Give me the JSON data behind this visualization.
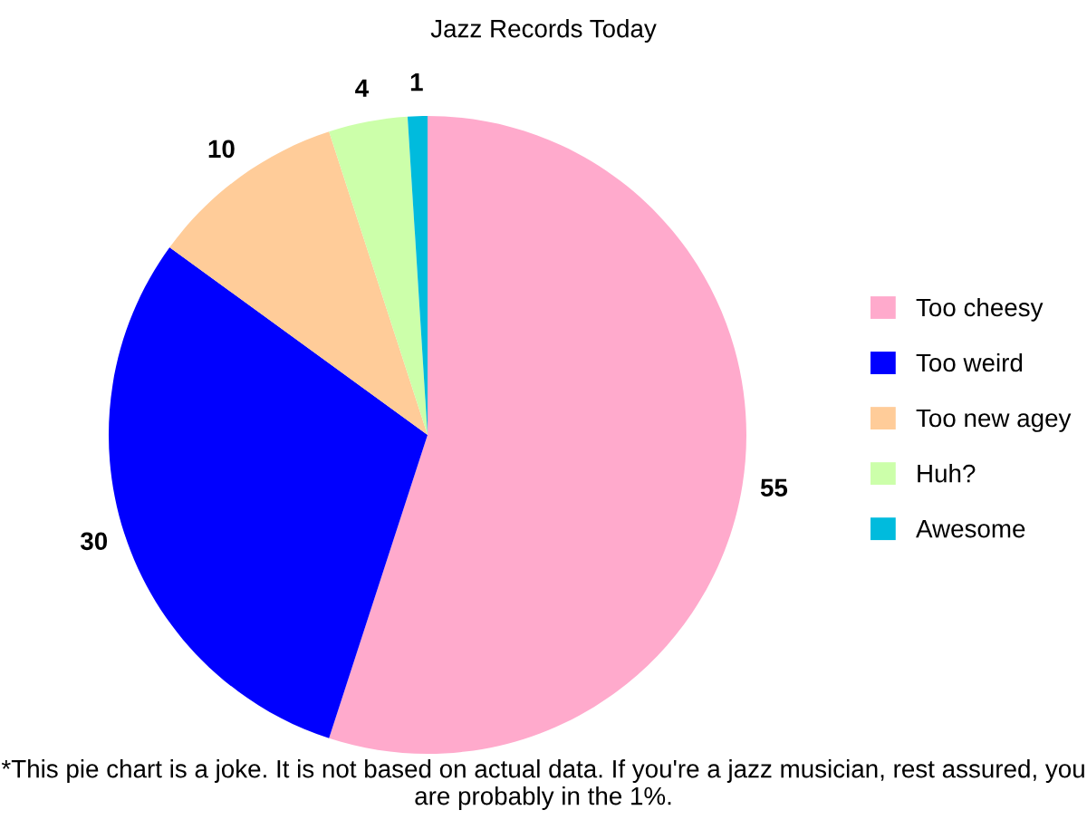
{
  "chart_data": {
    "type": "pie",
    "title": "Jazz Records Today",
    "categories": [
      "Too cheesy",
      "Too weird",
      "Too new agey",
      "Huh?",
      "Awesome"
    ],
    "values": [
      55,
      30,
      10,
      4,
      1
    ],
    "colors": [
      "#ffaacc",
      "#0000ff",
      "#ffcc99",
      "#ccffaa",
      "#00bbdd"
    ],
    "data_labels": true,
    "legend": "right",
    "annotations": [
      "*This pie chart is a joke. It is not based on actual data. If you're a jazz musician, rest assured, you are probably in the 1%."
    ]
  }
}
